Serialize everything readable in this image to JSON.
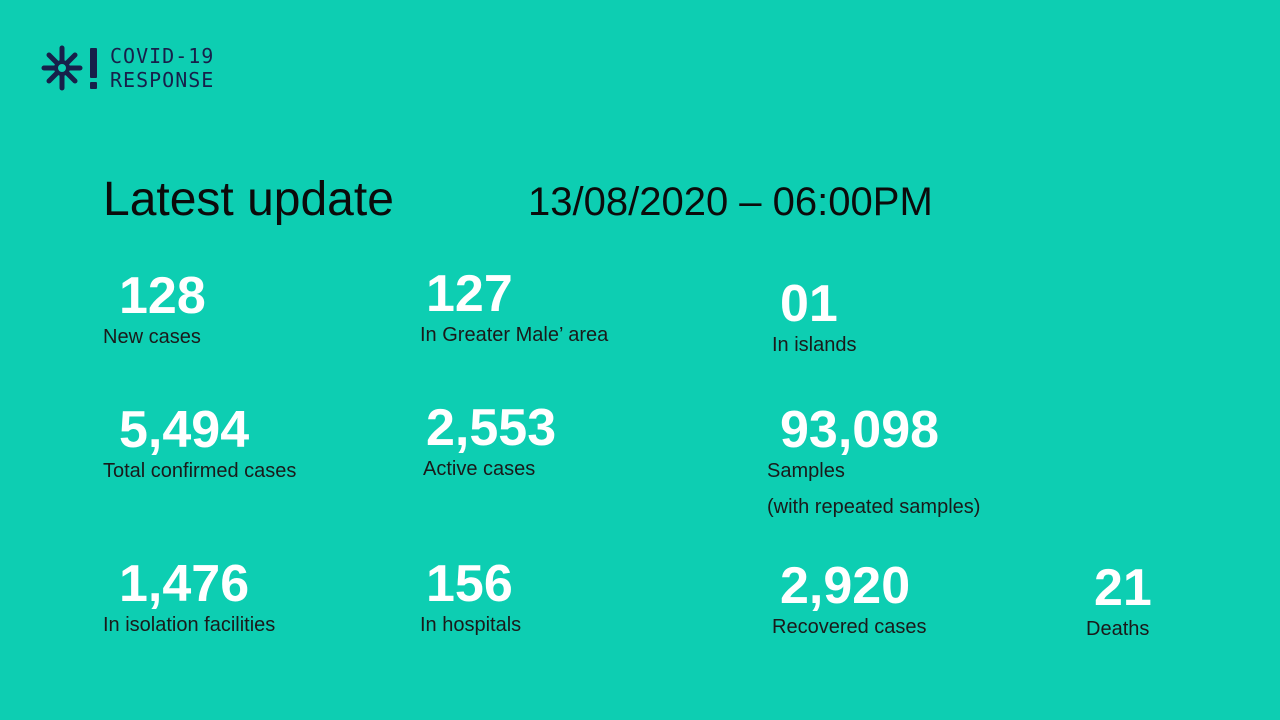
{
  "logo": {
    "line1": "COVID-19",
    "line2": "RESPONSE",
    "icon": "snowflake-exclamation-icon",
    "color": "#17204a"
  },
  "heading": "Latest update",
  "datetime": "13/08/2020 – 06:00PM",
  "accent_color": "#0dceb2",
  "stats": {
    "new_cases": {
      "value": "128",
      "label": "New cases"
    },
    "greater_male": {
      "value": "127",
      "label": "In Greater Male’ area"
    },
    "islands": {
      "value": "01",
      "label": "In islands"
    },
    "total_confirmed": {
      "value": "5,494",
      "label": "Total confirmed cases"
    },
    "active": {
      "value": "2,553",
      "label": "Active cases"
    },
    "samples": {
      "value": "93,098",
      "label": "Samples",
      "sublabel": "(with repeated samples)"
    },
    "isolation": {
      "value": "1,476",
      "label": "In isolation facilities"
    },
    "hospitals": {
      "value": "156",
      "label": "In hospitals"
    },
    "recovered": {
      "value": "2,920",
      "label": "Recovered cases"
    },
    "deaths": {
      "value": "21",
      "label": "Deaths"
    }
  }
}
